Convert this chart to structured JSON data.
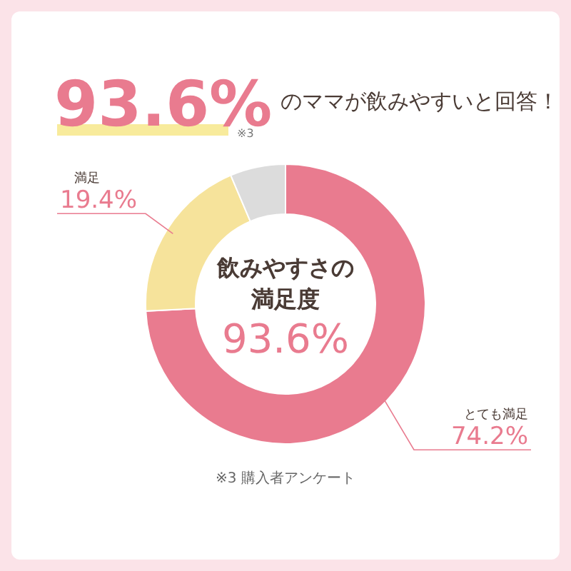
{
  "chart_data": {
    "type": "donut",
    "title": "93.6%のママが飲みやすいと回答！",
    "categories": [
      "とても満足",
      "満足",
      null
    ],
    "values": [
      74.2,
      19.4,
      6.4
    ],
    "colors": [
      "#e97b8f",
      "#f6e39b",
      "#dcdcdc"
    ],
    "value_labels": [
      "74.2%",
      "19.4%",
      null
    ],
    "annotations": [
      "※3",
      "飲みやすさの",
      "満足度",
      "93.6%",
      "※3 購入者アンケート"
    ]
  }
}
